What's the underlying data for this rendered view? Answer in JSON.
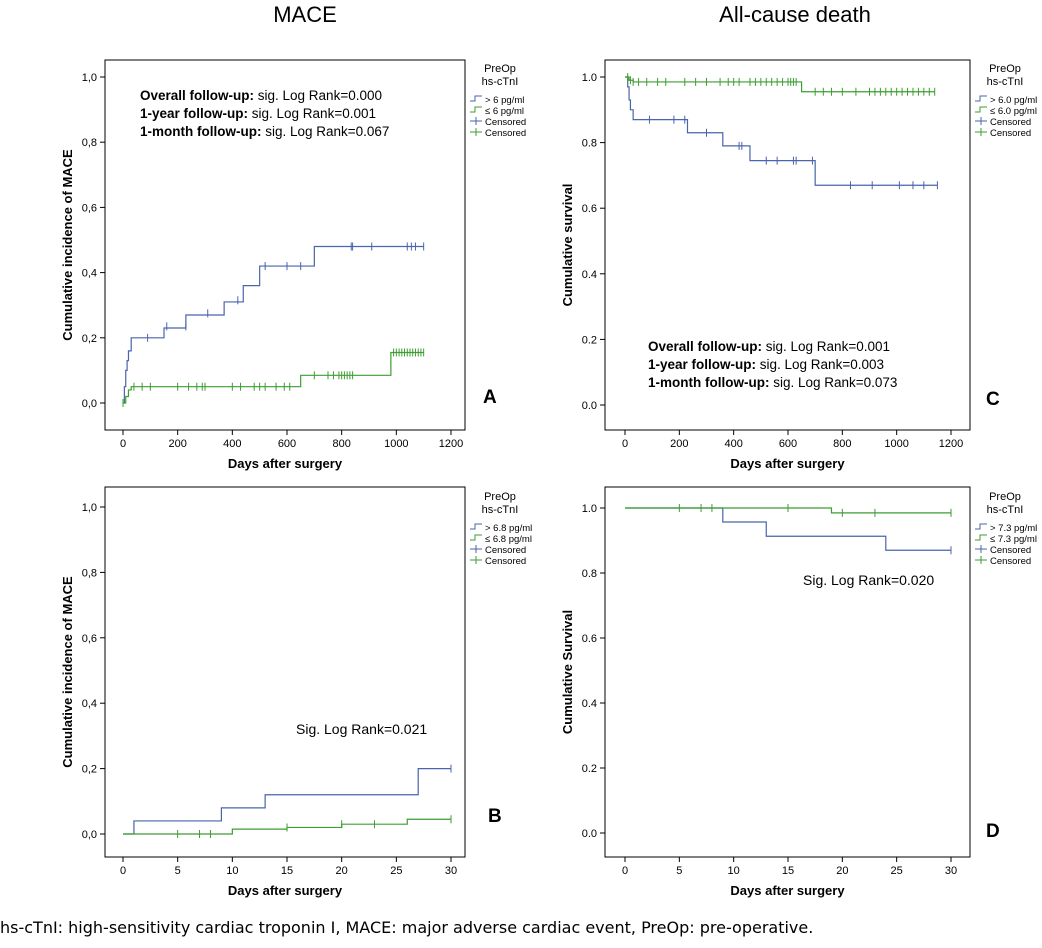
{
  "titles": {
    "left": "MACE",
    "right": "All-cause death"
  },
  "caption": "hs-cTnI: high-sensitivity cardiac troponin I, MACE: major adverse cardiac event, PreOp: pre-operative.",
  "colors": {
    "high": "#4a64ad",
    "low": "#3d9e32"
  },
  "chart_data": [
    {
      "panel": "A",
      "type": "line",
      "step": true,
      "xlabel": "Days after surgery",
      "ylabel": "Cumulative incidence of MACE",
      "xlim": [
        0,
        1200
      ],
      "ylim": [
        0,
        1
      ],
      "xticks": [
        0,
        200,
        400,
        600,
        800,
        1000,
        1200
      ],
      "yticks": [
        0,
        0.2,
        0.4,
        0.6,
        0.8,
        1.0
      ],
      "yticklabels": [
        "0,0",
        "0,2",
        "0,4",
        "0,6",
        "0,8",
        "1,0"
      ],
      "legend_title": [
        "PreOp",
        "hs-cTnI"
      ],
      "legend": [
        "> 6 pg/ml",
        "≤ 6 pg/ml",
        "Censored",
        "Censored"
      ],
      "annotations": [
        {
          "bold": "Overall follow-up:",
          "text": " sig. Log Rank=0.000"
        },
        {
          "bold": "1-year follow-up:",
          "text": " sig. Log Rank=0.001"
        },
        {
          "bold": "1-month follow-up:",
          "text": " sig. Log Rank=0.067"
        }
      ],
      "series": [
        {
          "name": "> 6 pg/ml",
          "color": "high",
          "x": [
            0,
            5,
            10,
            15,
            20,
            30,
            60,
            150,
            200,
            230,
            300,
            370,
            400,
            440,
            500,
            700,
            1100
          ],
          "y": [
            0,
            0.05,
            0.1,
            0.13,
            0.16,
            0.2,
            0.2,
            0.23,
            0.23,
            0.27,
            0.27,
            0.31,
            0.31,
            0.36,
            0.42,
            0.48,
            0.48
          ],
          "censored_x": [
            90,
            160,
            230,
            310,
            420,
            520,
            600,
            650,
            835,
            840,
            910,
            1040,
            1055,
            1070,
            1100
          ],
          "censored_y": [
            0.2,
            0.235,
            0.235,
            0.275,
            0.315,
            0.42,
            0.42,
            0.42,
            0.48,
            0.48,
            0.48,
            0.48,
            0.48,
            0.48,
            0.48
          ]
        },
        {
          "name": "≤ 6 pg/ml",
          "color": "low",
          "x": [
            0,
            10,
            20,
            30,
            640,
            650,
            980,
            1100
          ],
          "y": [
            0,
            0.02,
            0.04,
            0.05,
            0.05,
            0.085,
            0.155,
            0.155
          ],
          "censored_x": [
            0,
            40,
            70,
            100,
            200,
            240,
            270,
            290,
            300,
            400,
            430,
            480,
            500,
            520,
            560,
            590,
            610,
            700,
            750,
            770,
            790,
            800,
            810,
            820,
            830,
            840,
            990,
            1000,
            1010,
            1020,
            1030,
            1040,
            1050,
            1060,
            1070,
            1080,
            1090,
            1100
          ],
          "censored_y": [
            0,
            0.05,
            0.05,
            0.05,
            0.05,
            0.05,
            0.05,
            0.05,
            0.05,
            0.05,
            0.05,
            0.05,
            0.05,
            0.05,
            0.05,
            0.05,
            0.05,
            0.085,
            0.085,
            0.085,
            0.085,
            0.085,
            0.085,
            0.085,
            0.085,
            0.085,
            0.155,
            0.155,
            0.155,
            0.155,
            0.155,
            0.155,
            0.155,
            0.155,
            0.155,
            0.155,
            0.155,
            0.155
          ]
        }
      ]
    },
    {
      "panel": "B",
      "type": "line",
      "step": true,
      "xlabel": "Days after surgery",
      "ylabel": "Cumulative incidence of MACE",
      "xlim": [
        0,
        30
      ],
      "ylim": [
        0,
        1
      ],
      "xticks": [
        0,
        5,
        10,
        15,
        20,
        25,
        30
      ],
      "yticks": [
        0,
        0.2,
        0.4,
        0.6,
        0.8,
        1.0
      ],
      "yticklabels": [
        "0,0",
        "0,2",
        "0,4",
        "0,6",
        "0,8",
        "1,0"
      ],
      "legend_title": [
        "PreOp",
        "hs-cTnI"
      ],
      "legend": [
        "> 6.8 pg/ml",
        "≤ 6.8 pg/ml",
        "Censored",
        "Censored"
      ],
      "annotations": [
        {
          "bold": "",
          "text": "Sig. Log Rank=0.021"
        }
      ],
      "series": [
        {
          "name": "> 6.8 pg/ml",
          "color": "high",
          "x": [
            0,
            1,
            9,
            13,
            24,
            27,
            30
          ],
          "y": [
            0,
            0.04,
            0.08,
            0.12,
            0.12,
            0.2,
            0.2
          ],
          "censored_x": [
            30
          ],
          "censored_y": [
            0.2
          ]
        },
        {
          "name": "≤ 6.8 pg/ml",
          "color": "low",
          "x": [
            0,
            10,
            15,
            20,
            26,
            30
          ],
          "y": [
            0,
            0.015,
            0.02,
            0.03,
            0.045,
            0.045
          ],
          "censored_x": [
            5,
            7,
            8,
            15,
            20,
            23,
            30
          ],
          "censored_y": [
            0,
            0,
            0,
            0.02,
            0.03,
            0.03,
            0.045
          ]
        }
      ]
    },
    {
      "panel": "C",
      "type": "line",
      "step": true,
      "xlabel": "Days after surgery",
      "ylabel": "Cumulative survival",
      "xlim": [
        0,
        1200
      ],
      "ylim": [
        0,
        1
      ],
      "xticks": [
        0,
        200,
        400,
        600,
        800,
        1000,
        1200
      ],
      "yticks": [
        0,
        0.2,
        0.4,
        0.6,
        0.8,
        1.0
      ],
      "yticklabels": [
        "0.0",
        "0.2",
        "0.4",
        "0.6",
        "0.8",
        "1.0"
      ],
      "legend_title": [
        "PreOp",
        "hs-cTnI"
      ],
      "legend": [
        "> 6.0 pg/ml",
        "≤ 6.0 pg/ml",
        "Censored",
        "Censored"
      ],
      "annotations": [
        {
          "bold": "Overall follow-up:",
          "text": " sig. Log Rank=0.001"
        },
        {
          "bold": "1-year follow-up:",
          "text": " sig. Log Rank=0.003"
        },
        {
          "bold": "1-month follow-up:",
          "text": " sig. Log Rank=0.073"
        }
      ],
      "series": [
        {
          "name": "> 6.0 pg/ml",
          "color": "high",
          "x": [
            0,
            10,
            15,
            20,
            30,
            40,
            230,
            360,
            460,
            700,
            1150
          ],
          "y": [
            1.0,
            0.97,
            0.93,
            0.9,
            0.87,
            0.87,
            0.83,
            0.79,
            0.745,
            0.67,
            0.67
          ],
          "censored_x": [
            90,
            180,
            220,
            300,
            420,
            430,
            520,
            560,
            620,
            630,
            690,
            830,
            910,
            1010,
            1060,
            1100,
            1150
          ],
          "censored_y": [
            0.87,
            0.87,
            0.87,
            0.83,
            0.79,
            0.79,
            0.745,
            0.745,
            0.745,
            0.745,
            0.745,
            0.67,
            0.67,
            0.67,
            0.67,
            0.67,
            0.67
          ]
        },
        {
          "name": "≤ 6.0 pg/ml",
          "color": "low",
          "x": [
            0,
            15,
            30,
            650,
            1140
          ],
          "y": [
            1.0,
            0.99,
            0.985,
            0.955,
            0.955
          ],
          "censored_x": [
            10,
            20,
            30,
            50,
            80,
            120,
            150,
            220,
            260,
            300,
            350,
            380,
            400,
            420,
            460,
            480,
            500,
            520,
            540,
            560,
            580,
            600,
            610,
            620,
            630,
            700,
            730,
            760,
            800,
            850,
            900,
            920,
            940,
            960,
            980,
            1000,
            1020,
            1040,
            1060,
            1080,
            1100,
            1120,
            1140
          ],
          "censored_y": [
            1.0,
            0.99,
            0.985,
            0.985,
            0.985,
            0.985,
            0.985,
            0.985,
            0.985,
            0.985,
            0.985,
            0.985,
            0.985,
            0.985,
            0.985,
            0.985,
            0.985,
            0.985,
            0.985,
            0.985,
            0.985,
            0.985,
            0.985,
            0.985,
            0.985,
            0.955,
            0.955,
            0.955,
            0.955,
            0.955,
            0.955,
            0.955,
            0.955,
            0.955,
            0.955,
            0.955,
            0.955,
            0.955,
            0.955,
            0.955,
            0.955,
            0.955,
            0.955
          ]
        }
      ]
    },
    {
      "panel": "D",
      "type": "line",
      "step": true,
      "xlabel": "Days after surgery",
      "ylabel": "Cumulative Survival",
      "xlim": [
        0,
        30
      ],
      "ylim": [
        0,
        1
      ],
      "xticks": [
        0,
        5,
        10,
        15,
        20,
        25,
        30
      ],
      "yticks": [
        0,
        0.2,
        0.4,
        0.6,
        0.8,
        1.0
      ],
      "yticklabels": [
        "0.0",
        "0.2",
        "0.4",
        "0.6",
        "0.8",
        "1.0"
      ],
      "legend_title": [
        "PreOp",
        "hs-cTnI"
      ],
      "legend": [
        "> 7.3 pg/ml",
        "≤ 7.3 pg/ml",
        "Censored",
        "Censored"
      ],
      "annotations": [
        {
          "bold": "",
          "text": "Sig. Log Rank=0.020"
        }
      ],
      "series": [
        {
          "name": "> 7.3 pg/ml",
          "color": "high",
          "x": [
            0,
            9,
            13,
            24,
            30
          ],
          "y": [
            1.0,
            0.957,
            0.913,
            0.87,
            0.87
          ],
          "censored_x": [
            30
          ],
          "censored_y": [
            0.87
          ]
        },
        {
          "name": "≤ 7.3 pg/ml",
          "color": "low",
          "x": [
            0,
            19,
            30
          ],
          "y": [
            1.0,
            0.985,
            0.985
          ],
          "censored_x": [
            5,
            7,
            8,
            15,
            20,
            23,
            30
          ],
          "censored_y": [
            1.0,
            1.0,
            1.0,
            1.0,
            0.985,
            0.985,
            0.985
          ]
        }
      ]
    }
  ],
  "panel_labels": [
    "A",
    "B",
    "C",
    "D"
  ]
}
